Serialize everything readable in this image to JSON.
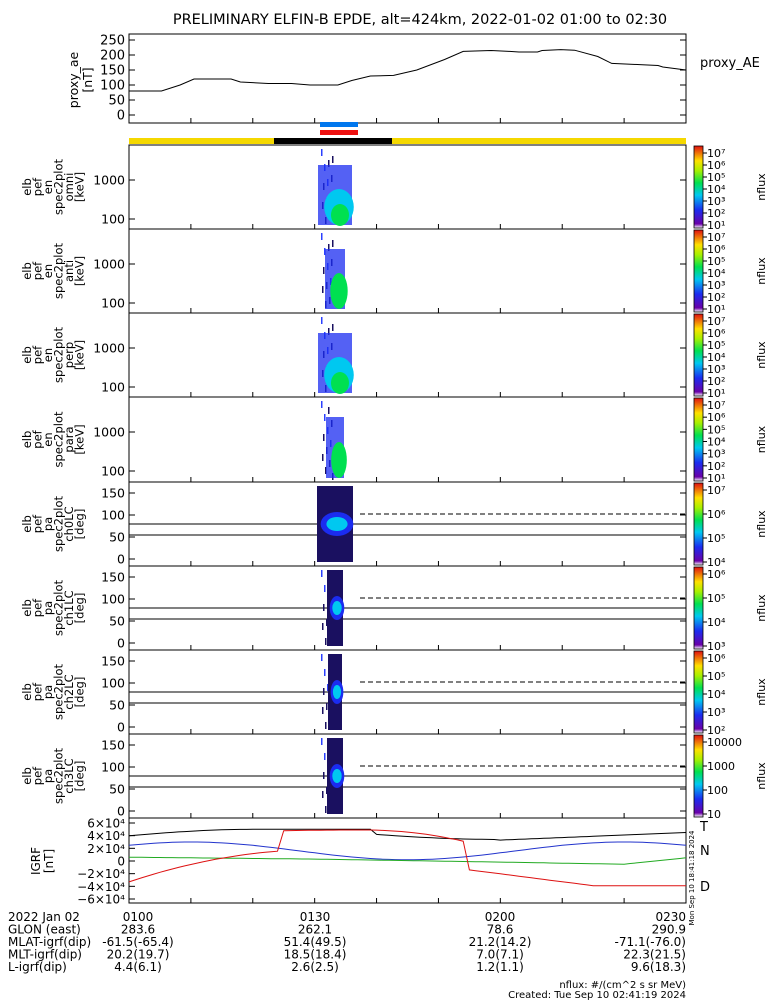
{
  "chart_data": {
    "title": "PRELIMINARY ELFIN-B EPDE, alt=424km, 2022-01-02 01:00 to 02:30",
    "ae": {
      "ylabel": [
        "proxy_ae",
        "[nT]"
      ],
      "legend": "proxy_AE",
      "ticks": [
        "250",
        "200",
        "150",
        "100",
        "50",
        "0"
      ],
      "tick_values": [
        250,
        200,
        150,
        100,
        50,
        0
      ],
      "ylim": [
        0,
        250
      ],
      "values": [
        [
          0,
          80
        ],
        [
          7,
          80
        ],
        [
          11,
          100
        ],
        [
          14,
          120
        ],
        [
          22,
          120
        ],
        [
          24,
          110
        ],
        [
          30,
          105
        ],
        [
          35,
          105
        ],
        [
          39,
          100
        ],
        [
          45,
          100
        ],
        [
          48,
          115
        ],
        [
          52,
          130
        ],
        [
          57,
          132
        ],
        [
          62,
          150
        ],
        [
          68,
          185
        ],
        [
          72,
          212
        ],
        [
          78,
          215
        ],
        [
          82,
          212
        ],
        [
          84,
          210
        ],
        [
          88,
          210
        ],
        [
          89,
          215
        ],
        [
          93,
          218
        ],
        [
          96,
          216
        ],
        [
          101,
          195
        ],
        [
          104,
          172
        ],
        [
          110,
          168
        ],
        [
          114,
          165
        ],
        [
          115,
          160
        ],
        [
          120,
          150
        ]
      ]
    },
    "bars": {
      "color_top": "#0077ee",
      "color_bottom": "#ee1111",
      "strip_yellow": "#f5d800",
      "strip_black": "#000000"
    },
    "panels": [
      {
        "ylabel": [
          "elb",
          "pef",
          "en",
          "spec2plot",
          "omni",
          "[keV]"
        ],
        "ticks": [
          "1000",
          "100"
        ],
        "cbar": [
          "10⁷",
          "10⁶",
          "10⁵",
          "10⁴",
          "10³",
          "10²",
          "10¹"
        ],
        "cunit": "nflux"
      },
      {
        "ylabel": [
          "elb",
          "pef",
          "en",
          "spec2plot",
          "anti",
          "[keV]"
        ],
        "ticks": [
          "1000",
          "100"
        ],
        "cbar": [
          "10⁷",
          "10⁶",
          "10⁵",
          "10⁴",
          "10³",
          "10²",
          "10¹"
        ],
        "cunit": "nflux"
      },
      {
        "ylabel": [
          "elb",
          "pef",
          "en",
          "spec2plot",
          "perp",
          "[keV]"
        ],
        "ticks": [
          "1000",
          "100"
        ],
        "cbar": [
          "10⁷",
          "10⁶",
          "10⁵",
          "10⁴",
          "10³",
          "10²",
          "10¹"
        ],
        "cunit": "nflux"
      },
      {
        "ylabel": [
          "elb",
          "pef",
          "en",
          "spec2plot",
          "para",
          "[keV]"
        ],
        "ticks": [
          "1000",
          "100"
        ],
        "cbar": [
          "10⁷",
          "10⁶",
          "10⁵",
          "10⁴",
          "10³",
          "10²",
          "10¹"
        ],
        "cunit": "nflux"
      },
      {
        "ylabel": [
          "elb",
          "pef",
          "pa",
          "spec2plot",
          "ch0LC",
          "[deg]"
        ],
        "ticks": [
          "150",
          "100",
          "50",
          "0"
        ],
        "cbar": [
          "10⁷",
          "10⁶",
          "10⁵",
          "10⁴"
        ],
        "cunit": "nflux"
      },
      {
        "ylabel": [
          "elb",
          "pef",
          "pa",
          "spec2plot",
          "ch1LC",
          "[deg]"
        ],
        "ticks": [
          "150",
          "100",
          "50",
          "0"
        ],
        "cbar": [
          "10⁶",
          "10⁵",
          "10⁴",
          "10³"
        ],
        "cunit": "nflux"
      },
      {
        "ylabel": [
          "elb",
          "pef",
          "pa",
          "spec2plot",
          "ch2LC",
          "[deg]"
        ],
        "ticks": [
          "150",
          "100",
          "50",
          "0"
        ],
        "cbar": [
          "10⁶",
          "10⁵",
          "10⁴",
          "10³",
          "10²"
        ],
        "cunit": "nflux"
      },
      {
        "ylabel": [
          "elb",
          "pef",
          "pa",
          "spec2plot",
          "ch3LC",
          "[deg]"
        ],
        "ticks": [
          "150",
          "100",
          "50",
          "0"
        ],
        "cbar": [
          "10000",
          "1000",
          "100",
          "10"
        ],
        "cunit": "nflux"
      }
    ],
    "igrf": {
      "ylabel": [
        "IGRF",
        "[nT]"
      ],
      "ticks": [
        "6×10⁴",
        "4×10⁴",
        "2×10⁴",
        "0",
        "−2×10⁴",
        "−4×10⁴",
        "−6×10⁴"
      ],
      "legend": [
        "T",
        "N",
        "D"
      ],
      "colors": [
        "#000000",
        "#2233cc",
        "#22aa22",
        "#dd1111"
      ]
    },
    "created_vertical": "Mon Sep 10 18:41:18 2024",
    "footer": {
      "rows": [
        [
          "2022 Jan 02",
          "0100",
          "0130",
          "0200",
          "0230"
        ],
        [
          "GLON (east)",
          "283.6",
          "262.1",
          "78.6",
          "290.9"
        ],
        [
          "MLAT-igrf(dip)",
          "-61.5(-65.4)",
          "51.4(49.5)",
          "21.2(14.2)",
          "-71.1(-76.0)"
        ],
        [
          "MLT-igrf(dip)",
          "20.2(19.7)",
          "18.5(18.4)",
          "7.0(7.1)",
          "22.3(21.5)"
        ],
        [
          "L-igrf(dip)",
          "4.4(6.1)",
          "2.6(2.5)",
          "1.2(1.1)",
          "9.6(18.3)"
        ]
      ],
      "unit_note": "nflux: #/(cm^2 s sr MeV)",
      "created": "Created: Tue Sep 10 02:41:19 2024"
    }
  }
}
